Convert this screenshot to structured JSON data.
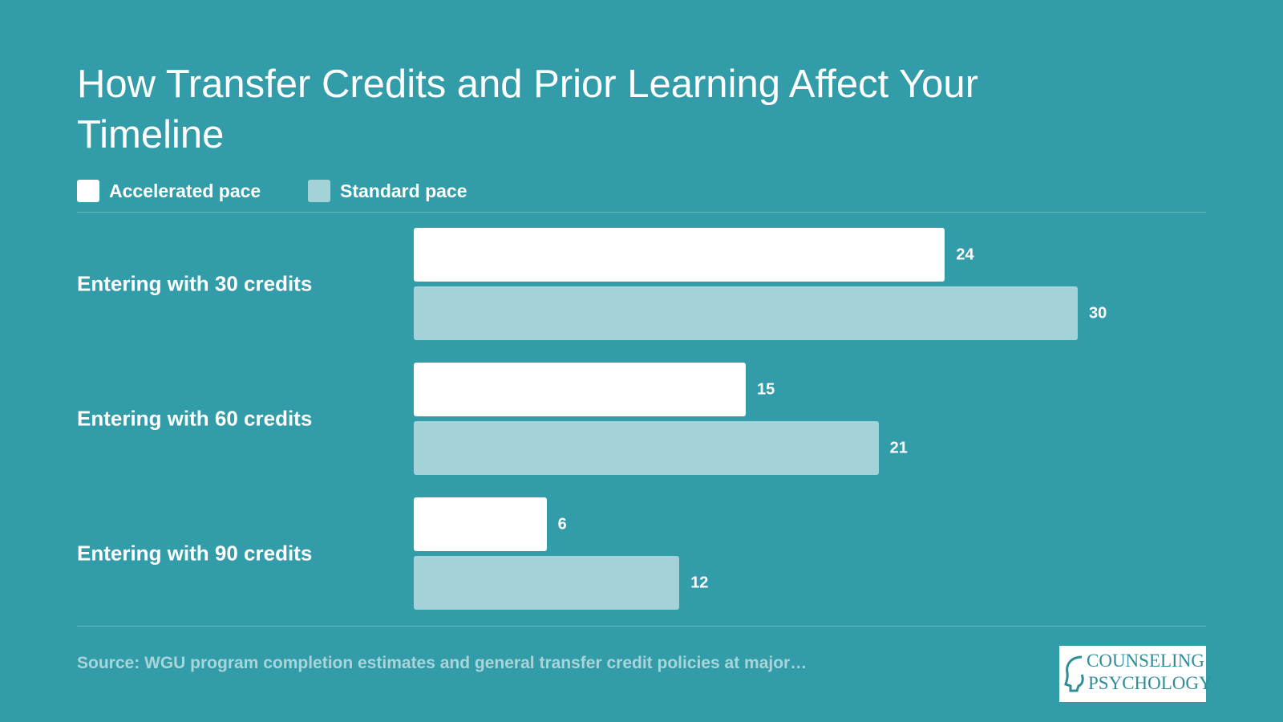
{
  "chart_data": {
    "type": "bar",
    "orientation": "horizontal",
    "title": "How Transfer Credits and Prior Learning Affect Your Timeline",
    "categories": [
      "Entering with 30 credits",
      "Entering with 60 credits",
      "Entering with 90 credits"
    ],
    "series": [
      {
        "name": "Accelerated pace",
        "color": "#ffffff",
        "values": [
          24,
          15,
          6
        ]
      },
      {
        "name": "Standard pace",
        "color": "#a3d3d9",
        "values": [
          30,
          21,
          12
        ]
      }
    ],
    "source": "Source: WGU program completion estimates and general transfer credit policies at major…"
  },
  "logo": {
    "line1": "COUNSELING",
    "line2": "PSYCHOLOGY"
  }
}
